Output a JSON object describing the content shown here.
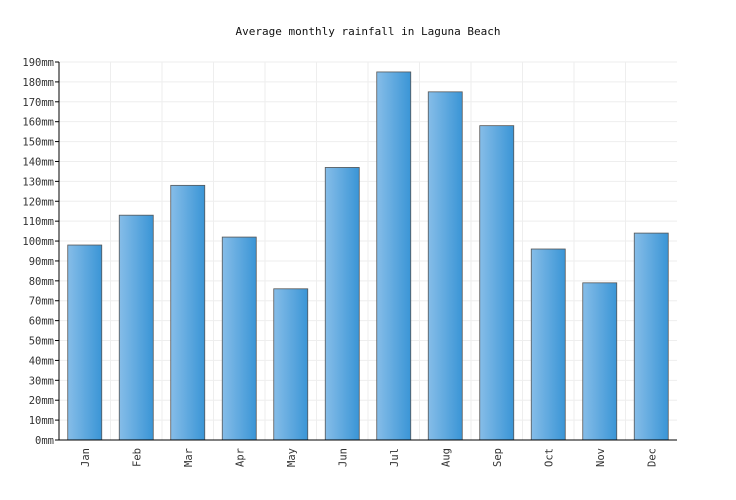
{
  "chart_data": {
    "type": "bar",
    "title": "Average monthly rainfall in Laguna Beach",
    "xlabel": "",
    "ylabel": "",
    "unit": "mm",
    "categories": [
      "Jan",
      "Feb",
      "Mar",
      "Apr",
      "May",
      "Jun",
      "Jul",
      "Aug",
      "Sep",
      "Oct",
      "Nov",
      "Dec"
    ],
    "values": [
      98,
      113,
      128,
      102,
      76,
      137,
      185,
      175,
      158,
      96,
      79,
      104
    ],
    "ylim": [
      0,
      190
    ],
    "yticks": [
      "0mm",
      "10mm",
      "20mm",
      "30mm",
      "40mm",
      "50mm",
      "60mm",
      "70mm",
      "80mm",
      "90mm",
      "100mm",
      "110mm",
      "120mm",
      "130mm",
      "140mm",
      "150mm",
      "160mm",
      "170mm",
      "180mm",
      "190mm"
    ],
    "grid": true,
    "legend": "none",
    "colors": {
      "bar_light": "#86bde8",
      "bar_dark": "#3a95d6",
      "bar_stroke": "#555555",
      "grid": "#eeeeee",
      "axis": "#000000"
    }
  }
}
